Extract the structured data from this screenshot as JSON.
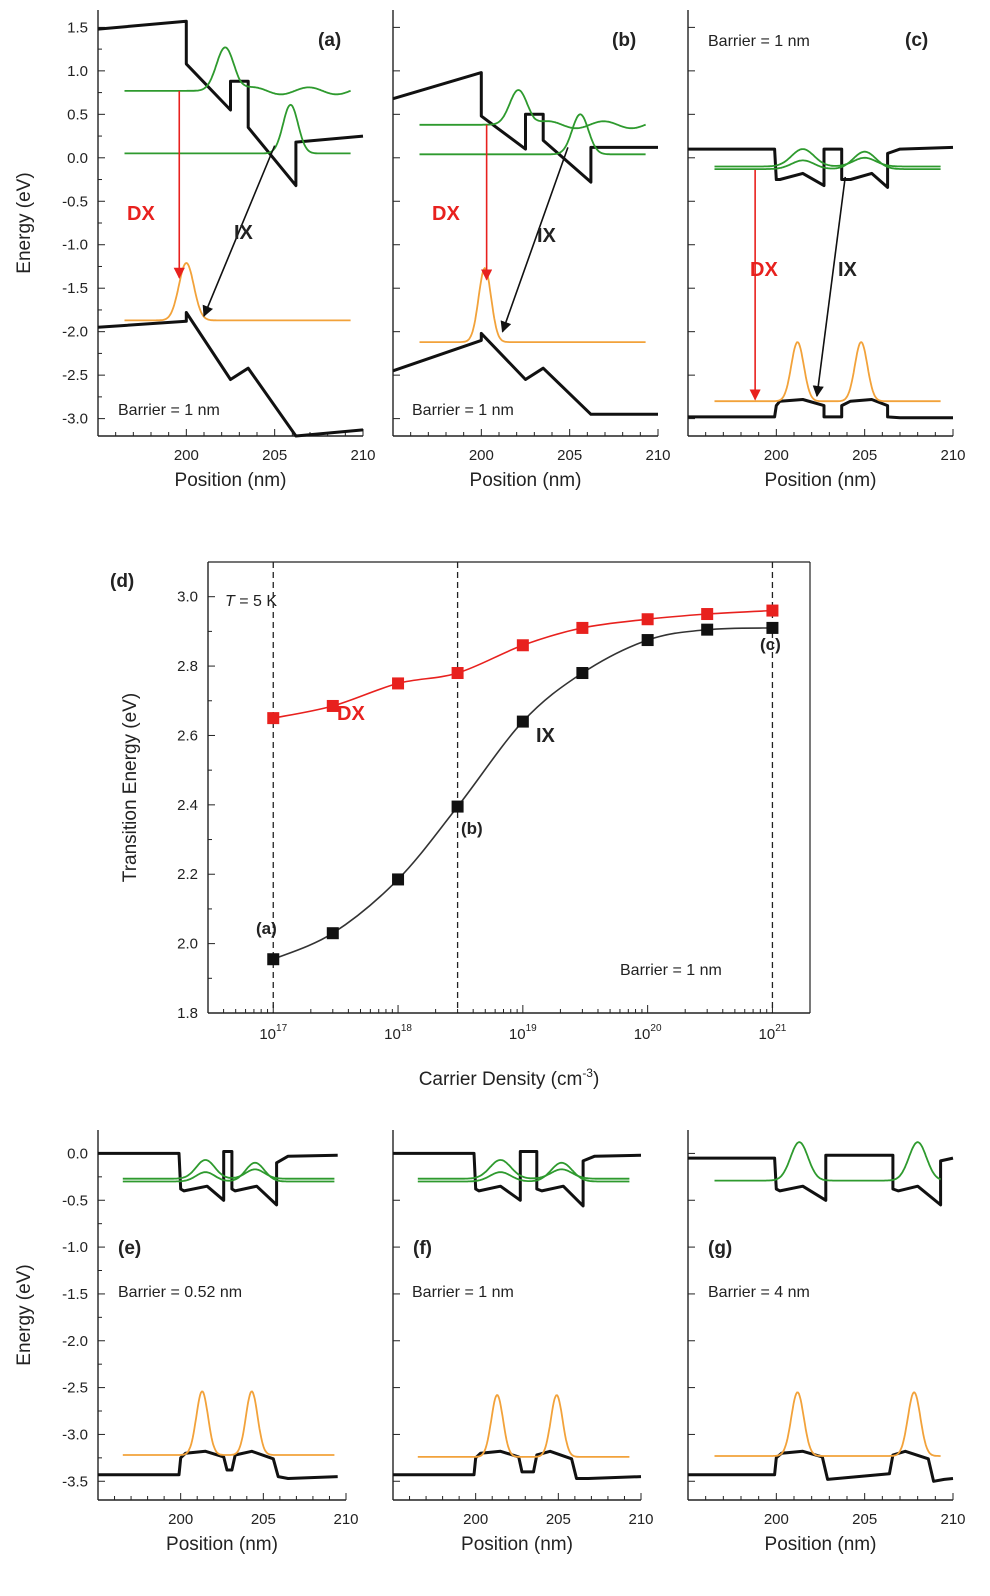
{
  "colors": {
    "band": "#111111",
    "electron": "#2e9a2e",
    "hole": "#f2a23a",
    "dx": "#e8211e",
    "ix": "#111111"
  },
  "chart_data": [
    {
      "id": "a",
      "type": "line",
      "panel_label": "(a)",
      "xlabel": "Position (nm)",
      "ylabel": "Energy (eV)",
      "xlim": [
        195,
        210
      ],
      "ylim": [
        -3.2,
        1.7
      ],
      "xticks": [
        200,
        205,
        210
      ],
      "yticks": [
        1.5,
        1.0,
        0.5,
        0.0,
        -0.5,
        -1.0,
        -1.5,
        -2.0,
        -2.5,
        -3.0
      ],
      "annotation": "Barrier = 1 nm",
      "transition_labels": [
        "DX",
        "IX"
      ],
      "series": [
        {
          "role": "conduction",
          "x": [
            195,
            200,
            200,
            202.5,
            202.5,
            203.5,
            203.5,
            206.2,
            206.2,
            210
          ],
          "y": [
            1.48,
            1.57,
            1.08,
            0.55,
            0.88,
            0.88,
            0.35,
            -0.32,
            0.18,
            0.25
          ]
        },
        {
          "role": "valence",
          "x": [
            195,
            200,
            200,
            202.5,
            202.5,
            203.5,
            203.5,
            206.2,
            206.2,
            210
          ],
          "y": [
            -1.95,
            -1.88,
            -1.78,
            -2.55,
            -2.55,
            -2.42,
            -2.42,
            -3.2,
            -3.2,
            -3.13
          ]
        },
        {
          "role": "electron-wf",
          "base": 0.77,
          "peaks": [
            {
              "x": 202.2,
              "h": 0.5,
              "w": 0.7
            }
          ],
          "ripple": 0.04
        },
        {
          "role": "electron-wf",
          "base": 0.05,
          "peaks": [
            {
              "x": 205.9,
              "h": 0.56,
              "w": 0.6
            }
          ],
          "ripple": 0
        },
        {
          "role": "hole-wf",
          "base": -1.87,
          "peaks": [
            {
              "x": 200.0,
              "h": 0.66,
              "w": 0.6
            }
          ],
          "ripple": 0
        }
      ]
    },
    {
      "id": "b",
      "type": "line",
      "panel_label": "(b)",
      "xlabel": "Position (nm)",
      "ylabel": "",
      "xlim": [
        195,
        210
      ],
      "ylim": [
        -3.2,
        1.7
      ],
      "xticks": [
        200,
        205,
        210
      ],
      "yticks": [],
      "annotation": "Barrier = 1 nm",
      "transition_labels": [
        "DX",
        "IX"
      ],
      "series": [
        {
          "role": "conduction",
          "x": [
            195,
            200,
            200,
            202.5,
            202.5,
            203.5,
            203.5,
            206.2,
            206.2,
            210
          ],
          "y": [
            0.68,
            0.98,
            0.48,
            0.1,
            0.5,
            0.5,
            0.2,
            -0.28,
            0.12,
            0.12
          ]
        },
        {
          "role": "valence",
          "x": [
            195,
            200,
            200,
            202.5,
            202.5,
            203.5,
            203.5,
            206.2,
            206.2,
            210
          ],
          "y": [
            -2.45,
            -2.1,
            -2.02,
            -2.55,
            -2.55,
            -2.42,
            -2.42,
            -2.95,
            -2.95,
            -2.95
          ]
        },
        {
          "role": "electron-wf",
          "base": 0.38,
          "peaks": [
            {
              "x": 202.1,
              "h": 0.4,
              "w": 0.7
            }
          ],
          "ripple": 0.04
        },
        {
          "role": "electron-wf",
          "base": 0.04,
          "peaks": [
            {
              "x": 205.6,
              "h": 0.46,
              "w": 0.65
            }
          ],
          "ripple": 0
        },
        {
          "role": "hole-wf",
          "base": -2.12,
          "peaks": [
            {
              "x": 200.2,
              "h": 0.85,
              "w": 0.5
            }
          ],
          "ripple": 0
        }
      ]
    },
    {
      "id": "c",
      "type": "line",
      "panel_label": "(c)",
      "xlabel": "Position (nm)",
      "ylabel": "",
      "xlim": [
        195,
        210
      ],
      "ylim": [
        -3.2,
        1.7
      ],
      "xticks": [
        200,
        205,
        210
      ],
      "yticks": [],
      "annotation": "Barrier = 1 nm",
      "transition_labels": [
        "DX",
        "IX"
      ],
      "series": [
        {
          "role": "conduction",
          "x": [
            195,
            199.9,
            200,
            200.2,
            201.5,
            202.7,
            202.7,
            203.7,
            203.7,
            204.2,
            205.4,
            206.3,
            206.3,
            207,
            210
          ],
          "y": [
            0.1,
            0.1,
            -0.25,
            -0.25,
            -0.18,
            -0.32,
            0.1,
            0.1,
            -0.25,
            -0.25,
            -0.18,
            -0.34,
            0.05,
            0.1,
            0.12
          ]
        },
        {
          "role": "valence",
          "x": [
            195,
            199.9,
            200,
            200.2,
            201.5,
            202.7,
            202.7,
            203.7,
            203.7,
            204.2,
            205.4,
            206.3,
            206.3,
            207,
            210
          ],
          "y": [
            -2.98,
            -2.98,
            -2.85,
            -2.8,
            -2.78,
            -2.85,
            -2.98,
            -2.98,
            -2.85,
            -2.8,
            -2.78,
            -2.85,
            -2.98,
            -2.99,
            -2.99
          ]
        },
        {
          "role": "electron-wf",
          "base": -0.1,
          "peaks": [
            {
              "x": 201.5,
              "h": 0.2,
              "w": 0.9
            },
            {
              "x": 205.0,
              "h": 0.1,
              "w": 0.9
            }
          ],
          "ripple": 0
        },
        {
          "role": "electron-wf",
          "base": -0.13,
          "peaks": [
            {
              "x": 201.5,
              "h": 0.1,
              "w": 0.9
            },
            {
              "x": 205.0,
              "h": 0.2,
              "w": 0.9
            }
          ],
          "ripple": 0
        },
        {
          "role": "hole-wf",
          "base": -2.8,
          "peaks": [
            {
              "x": 201.2,
              "h": 0.68,
              "w": 0.5
            },
            {
              "x": 204.8,
              "h": 0.68,
              "w": 0.5
            }
          ],
          "ripple": 0
        }
      ]
    },
    {
      "id": "d",
      "type": "line",
      "panel_label": "(d)",
      "xlabel": "Carrier Density (cm",
      "xlabel_sup": "-3",
      "xlabel_end": ")",
      "ylabel": "Transition Energy (eV)",
      "x_scale": "log",
      "xlim": [
        3e+16,
        2e+21
      ],
      "ylim": [
        1.8,
        3.1
      ],
      "xticks": [
        1e+17,
        1e+18,
        1e+19,
        1e+20,
        1e+21
      ],
      "xtick_labels": [
        {
          "base": "10",
          "exp": "17"
        },
        {
          "base": "10",
          "exp": "18"
        },
        {
          "base": "10",
          "exp": "19"
        },
        {
          "base": "10",
          "exp": "20"
        },
        {
          "base": "10",
          "exp": "21"
        }
      ],
      "yticks": [
        1.8,
        2.0,
        2.2,
        2.4,
        2.6,
        2.8,
        3.0
      ],
      "ytick_labels": [
        "1.8",
        "2.0",
        "2.2",
        "2.4",
        "2.6",
        "2.8",
        "3.0"
      ],
      "vlines": [
        1e+17,
        3e+18,
        1e+21
      ],
      "temperature": {
        "symbol": "T",
        "rest": " = 5 K"
      },
      "annotation": "Barrier = 1 nm",
      "point_labels": [
        "(a)",
        "(b)",
        "(c)"
      ],
      "series": [
        {
          "name": "DX",
          "x": [
            1e+17,
            3e+17,
            1e+18,
            3e+18,
            1e+19,
            3e+19,
            1e+20,
            3e+20,
            1e+21
          ],
          "y": [
            2.65,
            2.685,
            2.75,
            2.78,
            2.86,
            2.91,
            2.935,
            2.95,
            2.96
          ]
        },
        {
          "name": "IX",
          "x": [
            1e+17,
            3e+17,
            1e+18,
            3e+18,
            1e+19,
            3e+19,
            1e+20,
            3e+20,
            1e+21
          ],
          "y": [
            1.955,
            2.03,
            2.185,
            2.395,
            2.64,
            2.78,
            2.875,
            2.905,
            2.91
          ]
        }
      ]
    },
    {
      "id": "e",
      "type": "line",
      "panel_label": "(e)",
      "xlabel": "Position (nm)",
      "ylabel": "Energy (eV)",
      "xlim": [
        195,
        210
      ],
      "ylim": [
        -3.7,
        0.25
      ],
      "xticks": [
        200,
        205,
        210
      ],
      "yticks": [
        0.0,
        -0.5,
        -1.0,
        -1.5,
        -2.0,
        -2.5,
        -3.0,
        -3.5
      ],
      "annotation": "Barrier = 0.52 nm",
      "series": [
        {
          "role": "conduction",
          "x": [
            195,
            199.9,
            200,
            200.2,
            201.6,
            202.6,
            202.6,
            203.1,
            203.1,
            203.3,
            204.6,
            205.8,
            205.8,
            206.5,
            209.5
          ],
          "y": [
            0.0,
            0.0,
            -0.38,
            -0.4,
            -0.35,
            -0.5,
            0.02,
            0.02,
            -0.38,
            -0.4,
            -0.35,
            -0.55,
            -0.1,
            -0.03,
            -0.02
          ]
        },
        {
          "role": "valence",
          "x": [
            195,
            199.9,
            200,
            200.3,
            201.5,
            202.6,
            202.8,
            203.1,
            203.3,
            204.3,
            205.6,
            205.9,
            206.5,
            209.5
          ],
          "y": [
            -3.43,
            -3.43,
            -3.25,
            -3.2,
            -3.18,
            -3.24,
            -3.38,
            -3.38,
            -3.22,
            -3.18,
            -3.26,
            -3.45,
            -3.47,
            -3.45
          ]
        },
        {
          "role": "electron-wf",
          "base": -0.27,
          "peaks": [
            {
              "x": 201.5,
              "h": 0.2,
              "w": 0.8
            },
            {
              "x": 204.5,
              "h": 0.1,
              "w": 0.8
            }
          ],
          "ripple": 0
        },
        {
          "role": "electron-wf",
          "base": -0.3,
          "peaks": [
            {
              "x": 201.5,
              "h": 0.1,
              "w": 0.8
            },
            {
              "x": 204.5,
              "h": 0.2,
              "w": 0.8
            }
          ],
          "ripple": 0
        },
        {
          "role": "hole-wf",
          "base": -3.22,
          "peaks": [
            {
              "x": 201.3,
              "h": 0.68,
              "w": 0.5
            },
            {
              "x": 204.3,
              "h": 0.68,
              "w": 0.5
            }
          ],
          "ripple": 0
        }
      ]
    },
    {
      "id": "f",
      "type": "line",
      "panel_label": "(f)",
      "xlabel": "Position (nm)",
      "ylabel": "",
      "xlim": [
        195,
        210
      ],
      "ylim": [
        -3.7,
        0.25
      ],
      "xticks": [
        200,
        205,
        210
      ],
      "yticks": [],
      "annotation": "Barrier = 1 nm",
      "series": [
        {
          "role": "conduction",
          "x": [
            195,
            199.9,
            200,
            200.2,
            201.5,
            202.7,
            202.7,
            203.7,
            203.7,
            204.0,
            205.3,
            206.5,
            206.5,
            207.2,
            210
          ],
          "y": [
            0.0,
            0.0,
            -0.38,
            -0.4,
            -0.35,
            -0.5,
            0.02,
            0.02,
            -0.38,
            -0.4,
            -0.35,
            -0.56,
            -0.08,
            -0.03,
            -0.02
          ]
        },
        {
          "role": "valence",
          "x": [
            195,
            199.9,
            200,
            200.3,
            201.5,
            202.6,
            202.8,
            203.5,
            203.7,
            204.5,
            205.8,
            206.1,
            206.8,
            210
          ],
          "y": [
            -3.43,
            -3.43,
            -3.25,
            -3.2,
            -3.18,
            -3.24,
            -3.4,
            -3.4,
            -3.22,
            -3.18,
            -3.26,
            -3.47,
            -3.47,
            -3.45
          ]
        },
        {
          "role": "electron-wf",
          "base": -0.27,
          "peaks": [
            {
              "x": 201.5,
              "h": 0.2,
              "w": 0.9
            },
            {
              "x": 205.2,
              "h": 0.1,
              "w": 0.9
            }
          ],
          "ripple": 0
        },
        {
          "role": "electron-wf",
          "base": -0.3,
          "peaks": [
            {
              "x": 201.5,
              "h": 0.1,
              "w": 0.9
            },
            {
              "x": 205.2,
              "h": 0.2,
              "w": 0.9
            }
          ],
          "ripple": 0
        },
        {
          "role": "hole-wf",
          "base": -3.24,
          "peaks": [
            {
              "x": 201.3,
              "h": 0.66,
              "w": 0.5
            },
            {
              "x": 204.9,
              "h": 0.66,
              "w": 0.5
            }
          ],
          "ripple": 0
        }
      ]
    },
    {
      "id": "g",
      "type": "line",
      "panel_label": "(g)",
      "xlabel": "Position (nm)",
      "ylabel": "",
      "xlim": [
        195,
        210
      ],
      "ylim": [
        -3.7,
        0.25
      ],
      "xticks": [
        200,
        205,
        210
      ],
      "yticks": [],
      "annotation": "Barrier = 4 nm",
      "series": [
        {
          "role": "conduction",
          "x": [
            195,
            199.9,
            200,
            200.2,
            201.5,
            202.8,
            202.8,
            206.6,
            206.6,
            206.9,
            208.0,
            209.3,
            209.3,
            210
          ],
          "y": [
            -0.05,
            -0.05,
            -0.38,
            -0.4,
            -0.35,
            -0.5,
            -0.02,
            -0.02,
            -0.38,
            -0.4,
            -0.35,
            -0.55,
            -0.08,
            -0.05
          ]
        },
        {
          "role": "valence",
          "x": [
            195,
            199.9,
            200,
            200.3,
            201.5,
            202.6,
            202.9,
            206.4,
            206.6,
            207.3,
            208.6,
            208.9,
            209.5,
            210
          ],
          "y": [
            -3.43,
            -3.43,
            -3.25,
            -3.2,
            -3.18,
            -3.24,
            -3.48,
            -3.42,
            -3.22,
            -3.18,
            -3.26,
            -3.5,
            -3.48,
            -3.47
          ]
        },
        {
          "role": "electron-wf",
          "base": -0.29,
          "peaks": [
            {
              "x": 201.3,
              "h": 0.41,
              "w": 0.7
            },
            {
              "x": 208.0,
              "h": 0.41,
              "w": 0.7
            }
          ],
          "ripple": 0
        },
        {
          "role": "hole-wf",
          "base": -3.23,
          "peaks": [
            {
              "x": 201.2,
              "h": 0.68,
              "w": 0.5
            },
            {
              "x": 207.8,
              "h": 0.68,
              "w": 0.5
            }
          ],
          "ripple": 0
        }
      ]
    }
  ]
}
